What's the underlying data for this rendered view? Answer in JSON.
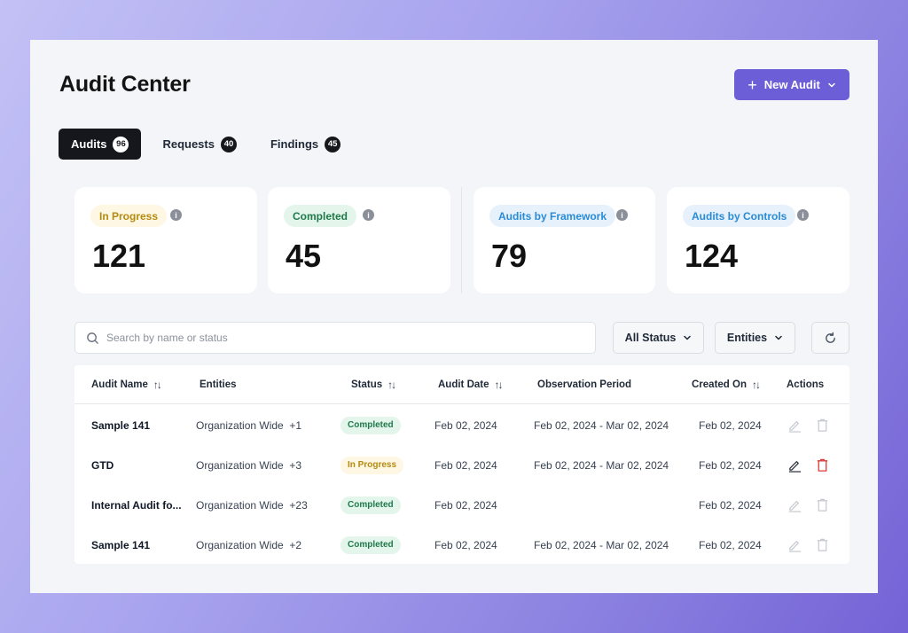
{
  "header": {
    "title": "Audit Center",
    "new_button_label": "New Audit"
  },
  "tabs": [
    {
      "label": "Audits",
      "count": "96",
      "active": true
    },
    {
      "label": "Requests",
      "count": "40",
      "active": false
    },
    {
      "label": "Findings",
      "count": "45",
      "active": false
    }
  ],
  "stats": [
    {
      "label": "In Progress",
      "value": "121"
    },
    {
      "label": "Completed",
      "value": "45"
    },
    {
      "label": "Audits by Framework",
      "value": "79"
    },
    {
      "label": "Audits by Controls",
      "value": "124"
    }
  ],
  "search": {
    "placeholder": "Search by name or status"
  },
  "filters": {
    "status_label": "All Status",
    "entities_label": "Entities"
  },
  "table": {
    "columns": {
      "name": "Audit Name",
      "entities": "Entities",
      "status": "Status",
      "audit_date": "Audit Date",
      "observation": "Observation Period",
      "created_on": "Created On",
      "actions": "Actions"
    },
    "rows": [
      {
        "name": "Sample 141",
        "entities": "Organization Wide",
        "extra": "+1",
        "status": "Completed",
        "audit_date": "Feb 02, 2024",
        "observation": "Feb 02, 2024 - Mar 02, 2024",
        "created_on": "Feb 02, 2024"
      },
      {
        "name": "GTD",
        "entities": "Organization Wide",
        "extra": "+3",
        "status": "In Progress",
        "audit_date": "Feb 02, 2024",
        "observation": "Feb 02, 2024 - Mar 02, 2024",
        "created_on": "Feb 02, 2024"
      },
      {
        "name": "Internal Audit fo...",
        "entities": "Organization Wide",
        "extra": "+23",
        "status": "Completed",
        "audit_date": "Feb 02, 2024",
        "observation": "",
        "created_on": "Feb 02, 2024"
      },
      {
        "name": "Sample 141",
        "entities": "Organization Wide",
        "extra": "+2",
        "status": "Completed",
        "audit_date": "Feb 02, 2024",
        "observation": "Feb 02, 2024 - Mar 02, 2024",
        "created_on": "Feb 02, 2024"
      }
    ]
  },
  "colors": {
    "accent": "#6b5ed6",
    "in_progress_bg": "#fdf7e3",
    "in_progress_fg": "#b58a10",
    "completed_bg": "#e4f5ec",
    "completed_fg": "#1f7a4a",
    "framework_bg": "#e6f1fb",
    "framework_fg": "#2a8bd6",
    "danger": "#dc3b3b"
  }
}
